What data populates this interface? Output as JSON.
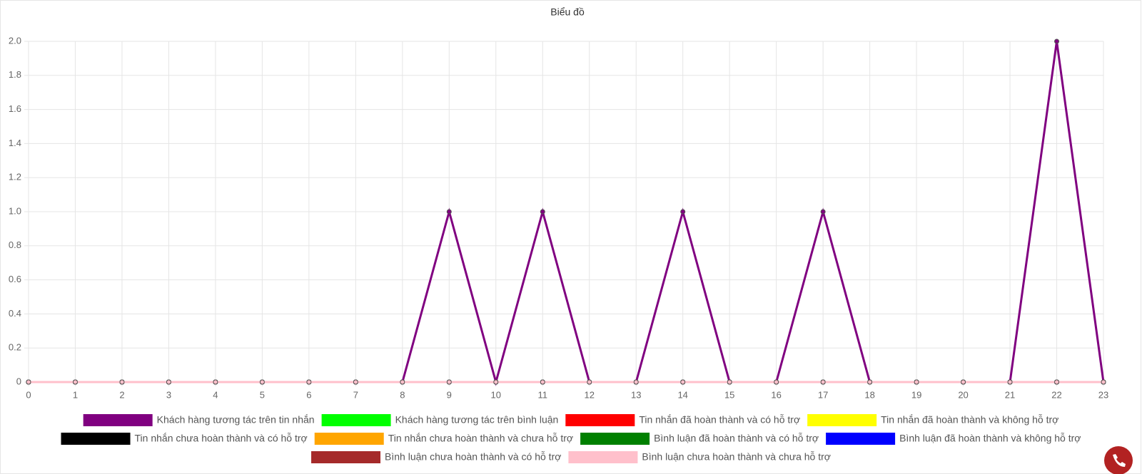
{
  "chart_data": {
    "type": "line",
    "title": "Biểu đồ",
    "x": [
      0,
      1,
      2,
      3,
      4,
      5,
      6,
      7,
      8,
      9,
      10,
      11,
      12,
      13,
      14,
      15,
      16,
      17,
      18,
      19,
      20,
      21,
      22,
      23
    ],
    "xlim": [
      0,
      23
    ],
    "xticks": [
      0,
      1,
      2,
      3,
      4,
      5,
      6,
      7,
      8,
      9,
      10,
      11,
      12,
      13,
      14,
      15,
      16,
      17,
      18,
      19,
      20,
      21,
      22,
      23
    ],
    "ylim": [
      0,
      2
    ],
    "yticks": [
      0,
      0.2,
      0.4,
      0.6,
      0.8,
      {
        "value": 1,
        "label": "1.0"
      },
      1.2,
      1.4,
      1.6,
      1.8,
      {
        "value": 2,
        "label": "2.0"
      }
    ],
    "grid": true,
    "legend": "bottom",
    "series": [
      {
        "name": "Khách hàng tương tác trên tin nhắn",
        "color": "#800080",
        "values": [
          0,
          0,
          0,
          0,
          0,
          0,
          0,
          0,
          0,
          1,
          0,
          1,
          0,
          0,
          1,
          0,
          0,
          1,
          0,
          0,
          0,
          0,
          2,
          0
        ]
      },
      {
        "name": "Khách hàng tương tác trên bình luận",
        "color": "#00ff00",
        "values": [
          0,
          0,
          0,
          0,
          0,
          0,
          0,
          0,
          0,
          0,
          0,
          0,
          0,
          0,
          0,
          0,
          0,
          0,
          0,
          0,
          0,
          0,
          0,
          0
        ]
      },
      {
        "name": "Tin nhắn đã hoàn thành và có hỗ trợ",
        "color": "#ff0000",
        "values": [
          0,
          0,
          0,
          0,
          0,
          0,
          0,
          0,
          0,
          0,
          0,
          0,
          0,
          0,
          0,
          0,
          0,
          0,
          0,
          0,
          0,
          0,
          0,
          0
        ]
      },
      {
        "name": "Tin nhắn đã hoàn thành và không hỗ trợ",
        "color": "#ffff00",
        "values": [
          0,
          0,
          0,
          0,
          0,
          0,
          0,
          0,
          0,
          0,
          0,
          0,
          0,
          0,
          0,
          0,
          0,
          0,
          0,
          0,
          0,
          0,
          0,
          0
        ]
      },
      {
        "name": "Tin nhắn chưa hoàn thành và có hỗ trợ",
        "color": "#000000",
        "values": [
          0,
          0,
          0,
          0,
          0,
          0,
          0,
          0,
          0,
          0,
          0,
          0,
          0,
          0,
          0,
          0,
          0,
          0,
          0,
          0,
          0,
          0,
          0,
          0
        ]
      },
      {
        "name": "Tin nhắn chưa hoàn thành và chưa hỗ trợ",
        "color": "#ffa500",
        "values": [
          0,
          0,
          0,
          0,
          0,
          0,
          0,
          0,
          0,
          0,
          0,
          0,
          0,
          0,
          0,
          0,
          0,
          0,
          0,
          0,
          0,
          0,
          0,
          0
        ]
      },
      {
        "name": "Bình luận đã hoàn thành và có hỗ trợ",
        "color": "#008000",
        "values": [
          0,
          0,
          0,
          0,
          0,
          0,
          0,
          0,
          0,
          0,
          0,
          0,
          0,
          0,
          0,
          0,
          0,
          0,
          0,
          0,
          0,
          0,
          0,
          0
        ]
      },
      {
        "name": "Bình luận đã hoàn thành và không hỗ trợ",
        "color": "#0000ff",
        "values": [
          0,
          0,
          0,
          0,
          0,
          0,
          0,
          0,
          0,
          0,
          0,
          0,
          0,
          0,
          0,
          0,
          0,
          0,
          0,
          0,
          0,
          0,
          0,
          0
        ]
      },
      {
        "name": "Bình luận chưa hoàn thành và có hỗ trợ",
        "color": "#a52a2a",
        "values": [
          0,
          0,
          0,
          0,
          0,
          0,
          0,
          0,
          0,
          0,
          0,
          0,
          0,
          0,
          0,
          0,
          0,
          0,
          0,
          0,
          0,
          0,
          0,
          0
        ]
      },
      {
        "name": "Bình luận chưa hoàn thành và chưa hỗ trợ",
        "color": "#ffc0cb",
        "values": [
          0,
          0,
          0,
          0,
          0,
          0,
          0,
          0,
          0,
          0,
          0,
          0,
          0,
          0,
          0,
          0,
          0,
          0,
          0,
          0,
          0,
          0,
          0,
          0
        ]
      }
    ]
  }
}
